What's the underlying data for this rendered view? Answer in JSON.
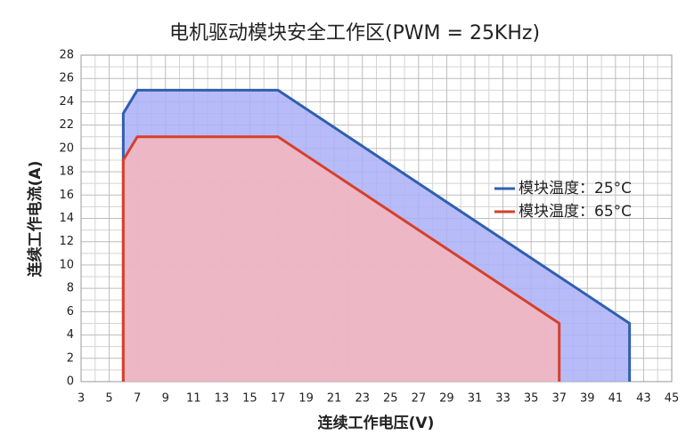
{
  "chart_data": {
    "type": "area",
    "title": "电机驱动模块安全工作区(PWM = 25KHz)",
    "xlabel": "连续工作电压(V)",
    "ylabel": "连续工作电流(A)",
    "xlim": [
      3,
      45
    ],
    "xticks": [
      3,
      5,
      7,
      9,
      11,
      13,
      15,
      17,
      19,
      21,
      23,
      25,
      27,
      29,
      31,
      33,
      35,
      37,
      39,
      41,
      43,
      45
    ],
    "ylim": [
      0,
      28
    ],
    "yticks": [
      0,
      2,
      4,
      6,
      8,
      10,
      12,
      14,
      16,
      18,
      20,
      22,
      24,
      26,
      28
    ],
    "grid": true,
    "legend": "right",
    "series": [
      {
        "name": "模块温度：25°C",
        "color": "#2f5fb0",
        "fill": "#aab0f7",
        "x": [
          6,
          6,
          7,
          17,
          42,
          42
        ],
        "values": [
          0,
          23,
          25,
          25,
          5,
          0
        ]
      },
      {
        "name": "模块温度：65°C",
        "color": "#d6402a",
        "fill": "#f7b6bd",
        "x": [
          6,
          6,
          7,
          17,
          37,
          37
        ],
        "values": [
          0,
          19,
          21,
          21,
          5,
          0
        ]
      }
    ]
  }
}
